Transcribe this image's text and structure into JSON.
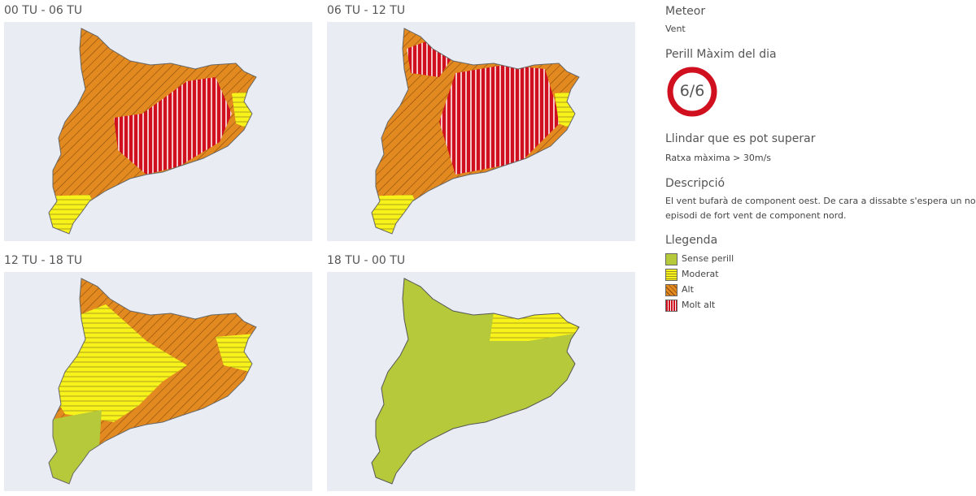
{
  "panels": [
    {
      "title": "00 TU - 06 TU"
    },
    {
      "title": "06 TU - 12 TU"
    },
    {
      "title": "12 TU - 18 TU"
    },
    {
      "title": "18 TU - 00 TU"
    }
  ],
  "sidebar": {
    "meteor_label": "Meteor",
    "meteor_value": "Vent",
    "max_label": "Perill Màxim del dia",
    "max_value": "6/6",
    "threshold_label": "Llindar que es pot superar",
    "threshold_value": "Ratxa màxima > 30m/s",
    "description_label": "Descripció",
    "description": "El vent bufarà de component oest. De cara a dissabte s'espera un nou episodi de fort vent de component nord.",
    "legend_label": "Llegenda",
    "legend": [
      {
        "label": "Sense perill"
      },
      {
        "label": "Moderat"
      },
      {
        "label": "Alt"
      },
      {
        "label": "Molt alt"
      }
    ]
  }
}
